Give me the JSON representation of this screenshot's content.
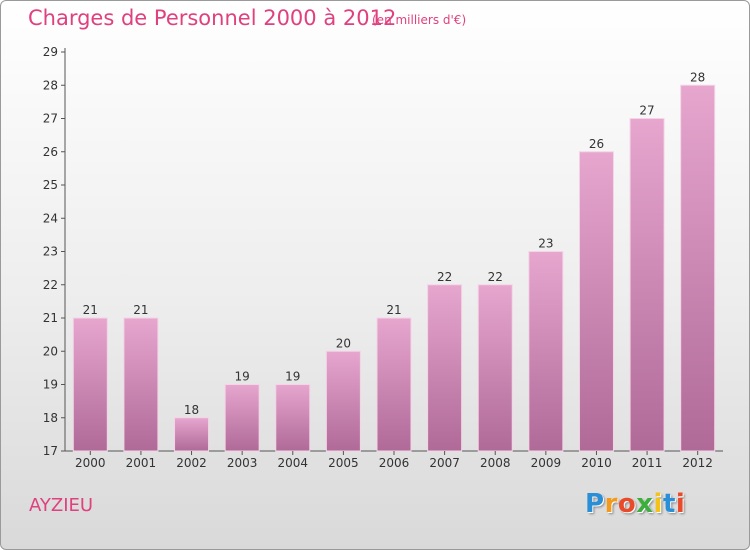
{
  "header": {
    "title": "Charges de Personnel 2000 à 2012",
    "unit": "(en milliers d'€)"
  },
  "footer": {
    "commune": "AYZIEU",
    "brand": [
      "P",
      "r",
      "o",
      "x",
      "i",
      "t",
      "i"
    ],
    "brand_colors": [
      "#2a8fd6",
      "#f39a1c",
      "#e84a2a",
      "#3cae3c",
      "#f3c31c",
      "#2a8fd6",
      "#e84a2a"
    ]
  },
  "colors": {
    "accent": "#e0407e",
    "bar_top": "#e6a6ce",
    "bar_bottom": "#b06a98"
  },
  "chart_data": {
    "type": "bar",
    "title": "Charges de Personnel 2000 à 2012",
    "categories": [
      "2000",
      "2001",
      "2002",
      "2003",
      "2004",
      "2005",
      "2006",
      "2007",
      "2008",
      "2009",
      "2010",
      "2011",
      "2012"
    ],
    "values": [
      21,
      21,
      18,
      19,
      19,
      20,
      21,
      22,
      22,
      23,
      26,
      27,
      28
    ],
    "xlabel": "",
    "ylabel": "",
    "ylim": [
      17,
      29
    ],
    "yticks": [
      17,
      18,
      19,
      20,
      21,
      22,
      23,
      24,
      25,
      26,
      27,
      28,
      29
    ],
    "grid": false,
    "data_labels": true
  }
}
